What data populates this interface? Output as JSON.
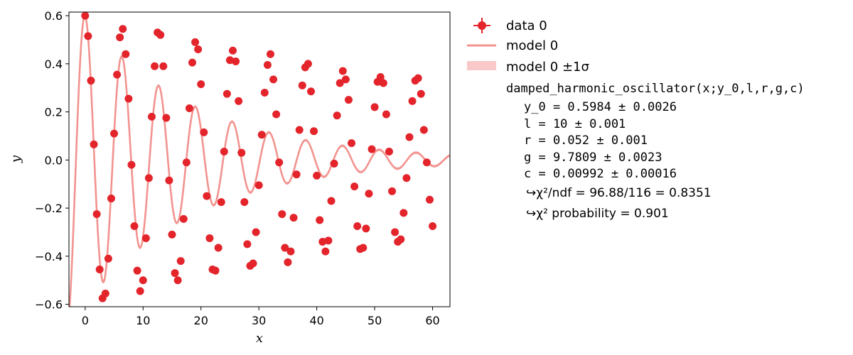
{
  "chart_data": {
    "type": "scatter",
    "xlabel": "x",
    "ylabel": "y",
    "xlim": [
      -2.8,
      63
    ],
    "ylim": [
      -0.61,
      0.615
    ],
    "xticks": [
      0,
      10,
      20,
      30,
      40,
      50,
      60
    ],
    "yticks": [
      -0.6,
      -0.4,
      -0.2,
      0.0,
      0.2,
      0.4,
      0.6
    ],
    "xtick_labels": [
      "0",
      "10",
      "20",
      "30",
      "40",
      "50",
      "60"
    ],
    "ytick_labels": [
      "−0.6",
      "−0.4",
      "−0.2",
      "0.0",
      "0.2",
      "0.4",
      "0.6"
    ],
    "grid": false,
    "legend_position": "outside-right",
    "colors": {
      "data": "#e3242b",
      "model": "#f2938f",
      "band": "#f8c9c8"
    },
    "series": [
      {
        "name": "data 0",
        "kind": "points",
        "x": [
          0.0,
          0.5,
          1.0,
          1.5,
          2.0,
          2.5,
          3.0,
          3.5,
          4.0,
          4.5,
          5.0,
          5.5,
          6.0,
          6.5,
          7.0,
          7.5,
          8.0,
          8.5,
          9.0,
          9.5,
          10.0,
          10.5,
          11.0,
          11.5,
          12.0,
          12.5,
          13.0,
          13.5,
          14.0,
          14.5,
          15.0,
          15.5,
          16.0,
          16.5,
          17.0,
          17.5,
          18.0,
          18.5,
          19.0,
          19.5,
          20.0,
          20.5,
          21.0,
          21.5,
          22.0,
          22.5,
          23.0,
          23.5,
          24.0,
          24.5,
          25.0,
          25.5,
          26.0,
          26.5,
          27.0,
          27.5,
          28.0,
          28.5,
          29.0,
          29.5,
          30.0,
          30.5,
          31.0,
          31.5,
          32.0,
          32.5,
          33.0,
          33.5,
          34.0,
          34.5,
          35.0,
          35.5,
          36.0,
          36.5,
          37.0,
          37.5,
          38.0,
          38.5,
          39.0,
          39.5,
          40.0,
          40.5,
          41.0,
          41.5,
          42.0,
          42.5,
          43.0,
          43.5,
          44.0,
          44.5,
          45.0,
          45.5,
          46.0,
          46.5,
          47.0,
          47.5,
          48.0,
          48.5,
          49.0,
          49.5,
          50.0,
          50.5,
          51.0,
          51.5,
          52.0,
          52.5,
          53.0,
          53.5,
          54.0,
          54.5,
          55.0,
          55.5,
          56.0,
          56.5,
          57.0,
          57.5,
          58.0,
          58.5,
          59.0,
          59.5,
          60.0
        ],
        "y": [
          0.6,
          0.515,
          0.33,
          0.065,
          -0.225,
          -0.455,
          -0.575,
          -0.555,
          -0.41,
          -0.16,
          0.11,
          0.355,
          0.51,
          0.545,
          0.44,
          0.255,
          -0.02,
          -0.275,
          -0.46,
          -0.545,
          -0.5,
          -0.325,
          -0.075,
          0.18,
          0.39,
          0.53,
          0.52,
          0.39,
          0.175,
          -0.085,
          -0.31,
          -0.47,
          -0.5,
          -0.42,
          -0.245,
          -0.01,
          0.215,
          0.405,
          0.49,
          0.46,
          0.315,
          0.115,
          -0.15,
          -0.325,
          -0.455,
          -0.46,
          -0.365,
          -0.175,
          0.035,
          0.275,
          0.415,
          0.455,
          0.41,
          0.245,
          0.03,
          -0.175,
          -0.35,
          -0.44,
          -0.43,
          -0.3,
          -0.105,
          0.105,
          0.28,
          0.395,
          0.44,
          0.335,
          0.19,
          -0.01,
          -0.225,
          -0.365,
          -0.425,
          -0.38,
          -0.24,
          -0.06,
          0.125,
          0.31,
          0.385,
          0.4,
          0.285,
          0.12,
          -0.065,
          -0.25,
          -0.34,
          -0.38,
          -0.335,
          -0.17,
          -0.015,
          0.185,
          0.32,
          0.37,
          0.335,
          0.25,
          0.07,
          -0.11,
          -0.275,
          -0.37,
          -0.365,
          -0.285,
          -0.14,
          0.045,
          0.22,
          0.325,
          0.345,
          0.32,
          0.19,
          0.035,
          -0.13,
          -0.3,
          -0.34,
          -0.33,
          -0.22,
          -0.075,
          0.095,
          0.245,
          0.33,
          0.34,
          0.275,
          0.125,
          -0.01,
          -0.165,
          -0.275
        ]
      },
      {
        "name": "model 0",
        "kind": "line",
        "function": "y_0 * exp(-r x) * cos(sqrt(g/l) x)",
        "params": {
          "y_0": 0.5984,
          "l": 10,
          "r": 0.052,
          "g": 9.7809
        }
      },
      {
        "name": "model 0 ±1σ",
        "kind": "band"
      }
    ]
  },
  "legend": {
    "data_label": "data 0",
    "model_label": "model 0",
    "band_label": "model 0 ±1σ",
    "function_signature": "damped_harmonic_oscillator(x;y_0,l,r,g,c)",
    "params": [
      "y_0 = 0.5984 ± 0.0026",
      "l = 10 ± 0.001",
      "r = 0.052 ± 0.001",
      "g = 9.7809 ± 0.0023",
      "c = 0.00992 ± 0.00016"
    ],
    "chi2_ndf": "↪χ²/ndf = 96.88/116 = 0.8351",
    "chi2_prob": "↪χ² probability = 0.901"
  }
}
